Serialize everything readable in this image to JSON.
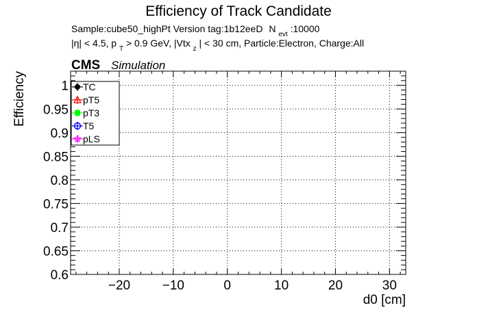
{
  "chart_data": {
    "type": "scatter",
    "title": "Efficiency of Track Candidate",
    "subtitle_sample": "Sample:cube50_highPt   Version tag:1b12eeD",
    "subtitle_nevt_main": "N",
    "subtitle_nevt_sub": "evt",
    "subtitle_nevt_value": ":10000",
    "cuts": {
      "eta": "|η| < 4.5, p",
      "pt_sub": "T",
      "pt": " > 0.9 GeV, |Vtx",
      "vtx_sub": "z",
      "rest": "| < 30 cm, Particle:Electron, Charge:All"
    },
    "cms_label": "CMS",
    "cms_sublabel": "Simulation",
    "xlabel": "d0 [cm]",
    "ylabel": "Efficiency",
    "xlim": [
      -29,
      33
    ],
    "ylim": [
      0.6,
      1.03
    ],
    "x_ticks": [
      {
        "value": -20,
        "label": "−20"
      },
      {
        "value": -10,
        "label": "−10"
      },
      {
        "value": 0,
        "label": "0"
      },
      {
        "value": 10,
        "label": "10"
      },
      {
        "value": 20,
        "label": "20"
      },
      {
        "value": 30,
        "label": "30"
      }
    ],
    "y_ticks": [
      {
        "value": 0.6,
        "label": "0.6"
      },
      {
        "value": 0.65,
        "label": "0.65"
      },
      {
        "value": 0.7,
        "label": "0.7"
      },
      {
        "value": 0.75,
        "label": "0.75"
      },
      {
        "value": 0.8,
        "label": "0.8"
      },
      {
        "value": 0.85,
        "label": "0.85"
      },
      {
        "value": 0.9,
        "label": "0.9"
      },
      {
        "value": 0.95,
        "label": "0.95"
      },
      {
        "value": 1.0,
        "label": "1"
      }
    ],
    "grid": true,
    "legend_position": "top-left",
    "series": [
      {
        "name": "TC",
        "color": "#000000",
        "marker": "filled-circle",
        "points": []
      },
      {
        "name": "pT5",
        "color": "#ff0000",
        "marker": "open-triangle",
        "points": []
      },
      {
        "name": "pT3",
        "color": "#00ff00",
        "marker": "filled-square",
        "points": []
      },
      {
        "name": "T5",
        "color": "#0000ff",
        "marker": "open-circle",
        "points": []
      },
      {
        "name": "pLS",
        "color": "#ff00ff",
        "marker": "open-star",
        "points": []
      }
    ]
  }
}
